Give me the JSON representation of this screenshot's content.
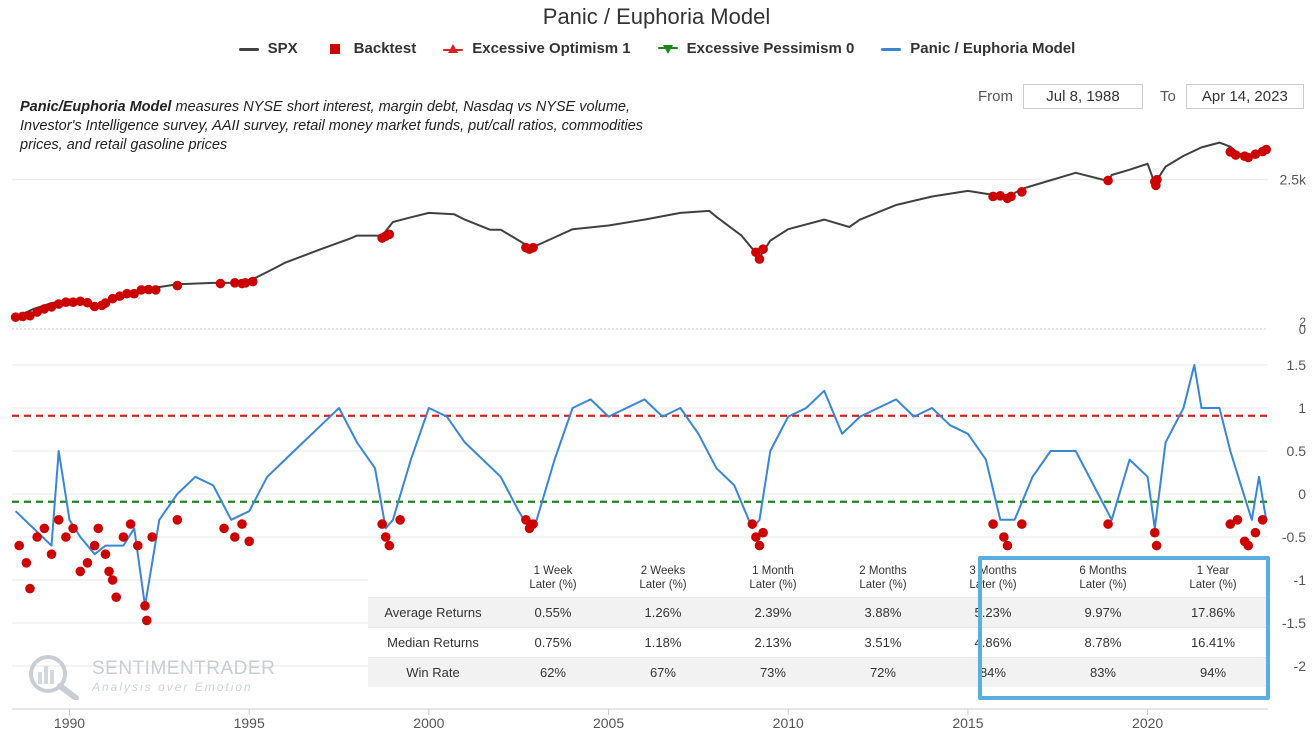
{
  "title": "Panic / Euphoria Model",
  "legend": [
    {
      "label": "SPX",
      "color": "#404040",
      "symbol": "line"
    },
    {
      "label": "Backtest",
      "color": "#cc0000",
      "symbol": "square"
    },
    {
      "label": "Excessive Optimism 1",
      "color": "#e02020",
      "symbol": "triangle-up"
    },
    {
      "label": "Excessive Pessimism 0",
      "color": "#1a8a1a",
      "symbol": "triangle-down"
    },
    {
      "label": "Panic / Euphoria Model",
      "color": "#3a86d4",
      "symbol": "line"
    }
  ],
  "description": {
    "bold": "Panic/Euphoria Model",
    "text": " measures NYSE short interest, margin debt, Nasdaq vs NYSE volume, Investor's Intelligence survey, AAII survey, retail money market funds, put/call ratios, commodities prices, and retail gasoline prices"
  },
  "range": {
    "from_label": "From",
    "from_value": "Jul 8, 1988",
    "to_label": "To",
    "to_value": "Apr 14, 2023"
  },
  "stats_table": {
    "headers": [
      [
        "1 Week",
        "Later (%)"
      ],
      [
        "2 Weeks",
        "Later (%)"
      ],
      [
        "1 Month",
        "Later (%)"
      ],
      [
        "2 Months",
        "Later (%)"
      ],
      [
        "3 Months",
        "Later (%)"
      ],
      [
        "6 Months",
        "Later (%)"
      ],
      [
        "1 Year",
        "Later (%)"
      ]
    ],
    "rows": [
      {
        "label": "Average Returns",
        "values": [
          "0.55%",
          "1.26%",
          "2.39%",
          "3.88%",
          "5.23%",
          "9.97%",
          "17.86%"
        ]
      },
      {
        "label": "Median Returns",
        "values": [
          "0.75%",
          "1.18%",
          "2.13%",
          "3.51%",
          "4.86%",
          "8.78%",
          "16.41%"
        ]
      },
      {
        "label": "Win Rate",
        "values": [
          "62%",
          "67%",
          "73%",
          "72%",
          "84%",
          "83%",
          "94%"
        ]
      }
    ],
    "highlight_color": "#5aafe0"
  },
  "logo": {
    "title": "SENTIMENTRADER",
    "subtitle": "Analysis over Emotion"
  },
  "chart_data": [
    {
      "type": "line",
      "name": "SPX",
      "color": "#404040",
      "scale": "log",
      "ytick_labels": [
        "2.5k",
        "2",
        "0"
      ],
      "x": [
        1988.5,
        1989,
        1989.5,
        1990,
        1990.6,
        1991,
        1992,
        1993,
        1994,
        1994.9,
        1995.5,
        1996,
        1997,
        1997.8,
        1998,
        1998.7,
        1999,
        1999.5,
        2000,
        2000.7,
        2001,
        2001.7,
        2002,
        2002.8,
        2003,
        2003.5,
        2004,
        2005,
        2006,
        2007,
        2007.8,
        2008,
        2008.7,
        2009.2,
        2009.5,
        2010,
        2011,
        2011.7,
        2012,
        2013,
        2014,
        2015,
        2015.7,
        2016.1,
        2016.5,
        2017,
        2018,
        2018.9,
        2019,
        2019.5,
        2020,
        2020.2,
        2020.5,
        2021,
        2021.5,
        2022,
        2022.3,
        2022.5,
        2022.8,
        2023,
        2023.3
      ],
      "values": [
        262,
        300,
        330,
        350,
        310,
        340,
        410,
        450,
        460,
        460,
        550,
        640,
        800,
        950,
        1000,
        1000,
        1250,
        1350,
        1450,
        1420,
        1300,
        1100,
        1100,
        830,
        850,
        970,
        1110,
        1180,
        1300,
        1450,
        1500,
        1360,
        1000,
        700,
        920,
        1110,
        1300,
        1150,
        1300,
        1650,
        1900,
        2080,
        1950,
        1880,
        2150,
        2350,
        2800,
        2450,
        2700,
        2950,
        3250,
        2350,
        3100,
        3700,
        4250,
        4600,
        4300,
        3900,
        3600,
        3850,
        4110
      ],
      "backtest_points": [
        [
          1988.5,
          262
        ],
        [
          1988.7,
          265
        ],
        [
          1988.9,
          268
        ],
        [
          1989.1,
          285
        ],
        [
          1989.3,
          300
        ],
        [
          1989.5,
          310
        ],
        [
          1989.7,
          325
        ],
        [
          1989.9,
          335
        ],
        [
          1990.1,
          335
        ],
        [
          1990.3,
          340
        ],
        [
          1990.5,
          332
        ],
        [
          1990.7,
          312
        ],
        [
          1990.9,
          318
        ],
        [
          1991.0,
          330
        ],
        [
          1991.2,
          355
        ],
        [
          1991.4,
          370
        ],
        [
          1991.6,
          385
        ],
        [
          1991.8,
          385
        ],
        [
          1992.0,
          410
        ],
        [
          1992.2,
          412
        ],
        [
          1992.4,
          410
        ],
        [
          1993.0,
          440
        ],
        [
          1994.2,
          455
        ],
        [
          1994.6,
          460
        ],
        [
          1994.8,
          455
        ],
        [
          1994.9,
          460
        ],
        [
          1995.1,
          470
        ],
        [
          1998.7,
          960
        ],
        [
          1998.8,
          990
        ],
        [
          1998.9,
          1020
        ],
        [
          2002.7,
          820
        ],
        [
          2002.8,
          800
        ],
        [
          2002.9,
          820
        ],
        [
          2009.1,
          760
        ],
        [
          2009.2,
          680
        ],
        [
          2009.3,
          800
        ],
        [
          2015.7,
          1900
        ],
        [
          2015.9,
          1920
        ],
        [
          2016.1,
          1840
        ],
        [
          2016.2,
          1900
        ],
        [
          2016.5,
          2050
        ],
        [
          2018.9,
          2470
        ],
        [
          2020.2,
          2420
        ],
        [
          2020.23,
          2280
        ],
        [
          2020.26,
          2500
        ],
        [
          2022.3,
          3950
        ],
        [
          2022.45,
          3750
        ],
        [
          2022.7,
          3680
        ],
        [
          2022.8,
          3600
        ],
        [
          2023.0,
          3800
        ],
        [
          2023.2,
          3970
        ],
        [
          2023.3,
          4100
        ]
      ]
    },
    {
      "type": "line",
      "name": "Panic / Euphoria Model",
      "color": "#3a86d4",
      "y_ticks": [
        1.5,
        1,
        0.5,
        0,
        -0.5,
        -1,
        -1.5,
        -2
      ],
      "excessive_optimism": 0.91,
      "excessive_pessimism": -0.09,
      "x_ticks": [
        1990,
        1995,
        2000,
        2005,
        2010,
        2015,
        2020
      ],
      "x": [
        1988.5,
        1989,
        1989.5,
        1989.7,
        1990,
        1990.3,
        1990.7,
        1991,
        1991.5,
        1991.8,
        1992.1,
        1992.5,
        1993,
        1993.5,
        1994,
        1994.5,
        1995,
        1995.5,
        1996,
        1996.5,
        1997,
        1997.5,
        1998,
        1998.5,
        1998.8,
        1999,
        1999.5,
        2000,
        2000.5,
        2001,
        2001.5,
        2002,
        2002.5,
        2002.8,
        2003,
        2003.5,
        2004,
        2004.5,
        2005,
        2005.5,
        2006,
        2006.5,
        2007,
        2007.5,
        2008,
        2008.5,
        2009,
        2009.2,
        2009.5,
        2010,
        2010.5,
        2011,
        2011.5,
        2012,
        2012.5,
        2013,
        2013.5,
        2014,
        2014.5,
        2015,
        2015.5,
        2015.9,
        2016.3,
        2016.8,
        2017.3,
        2018,
        2018.5,
        2019,
        2019.5,
        2020,
        2020.2,
        2020.5,
        2021,
        2021.3,
        2021.5,
        2022,
        2022.3,
        2022.6,
        2022.9,
        2023.1,
        2023.3
      ],
      "values": [
        -0.2,
        -0.4,
        -0.6,
        0.5,
        -0.3,
        -0.5,
        -0.7,
        -0.6,
        -0.6,
        -0.4,
        -1.3,
        -0.3,
        0.0,
        0.2,
        0.1,
        -0.3,
        -0.2,
        0.2,
        0.4,
        0.6,
        0.8,
        1.0,
        0.6,
        0.3,
        -0.4,
        -0.3,
        0.4,
        1.0,
        0.9,
        0.6,
        0.4,
        0.2,
        -0.2,
        -0.4,
        -0.3,
        0.4,
        1.0,
        1.1,
        0.9,
        1.0,
        1.1,
        0.9,
        1.0,
        0.7,
        0.3,
        0.1,
        -0.4,
        -0.3,
        0.5,
        0.9,
        1.0,
        1.2,
        0.7,
        0.9,
        1.0,
        1.1,
        0.9,
        1.0,
        0.8,
        0.7,
        0.4,
        -0.3,
        -0.3,
        0.2,
        0.5,
        0.5,
        0.1,
        -0.3,
        0.4,
        0.2,
        -0.4,
        0.6,
        1.0,
        1.5,
        1.0,
        1.0,
        0.5,
        0.1,
        -0.3,
        0.2,
        -0.3
      ],
      "backtest_points": [
        [
          1988.6,
          -0.6
        ],
        [
          1988.8,
          -0.8
        ],
        [
          1988.9,
          -1.1
        ],
        [
          1989.1,
          -0.5
        ],
        [
          1989.3,
          -0.4
        ],
        [
          1989.5,
          -0.7
        ],
        [
          1989.7,
          -0.3
        ],
        [
          1989.9,
          -0.5
        ],
        [
          1990.1,
          -0.4
        ],
        [
          1990.3,
          -0.9
        ],
        [
          1990.5,
          -0.8
        ],
        [
          1990.7,
          -0.6
        ],
        [
          1990.8,
          -0.4
        ],
        [
          1991.0,
          -0.7
        ],
        [
          1991.1,
          -0.9
        ],
        [
          1991.2,
          -1.0
        ],
        [
          1991.3,
          -1.2
        ],
        [
          1991.5,
          -0.5
        ],
        [
          1991.7,
          -0.35
        ],
        [
          1991.9,
          -0.6
        ],
        [
          1992.1,
          -1.3
        ],
        [
          1992.15,
          -1.47
        ],
        [
          1992.3,
          -0.5
        ],
        [
          1993.0,
          -0.3
        ],
        [
          1994.3,
          -0.4
        ],
        [
          1994.6,
          -0.5
        ],
        [
          1994.8,
          -0.35
        ],
        [
          1995.0,
          -0.55
        ],
        [
          1998.7,
          -0.35
        ],
        [
          1998.8,
          -0.5
        ],
        [
          1998.9,
          -0.6
        ],
        [
          1999.2,
          -0.3
        ],
        [
          2002.7,
          -0.3
        ],
        [
          2002.8,
          -0.4
        ],
        [
          2002.9,
          -0.35
        ],
        [
          2009.0,
          -0.35
        ],
        [
          2009.1,
          -0.5
        ],
        [
          2009.2,
          -0.6
        ],
        [
          2009.3,
          -0.45
        ],
        [
          2015.7,
          -0.35
        ],
        [
          2016.0,
          -0.5
        ],
        [
          2016.1,
          -0.6
        ],
        [
          2016.5,
          -0.35
        ],
        [
          2018.9,
          -0.35
        ],
        [
          2020.2,
          -0.45
        ],
        [
          2020.25,
          -0.6
        ],
        [
          2022.3,
          -0.35
        ],
        [
          2022.5,
          -0.3
        ],
        [
          2022.7,
          -0.55
        ],
        [
          2022.8,
          -0.6
        ],
        [
          2023.0,
          -0.45
        ],
        [
          2023.2,
          -0.3
        ]
      ]
    }
  ]
}
